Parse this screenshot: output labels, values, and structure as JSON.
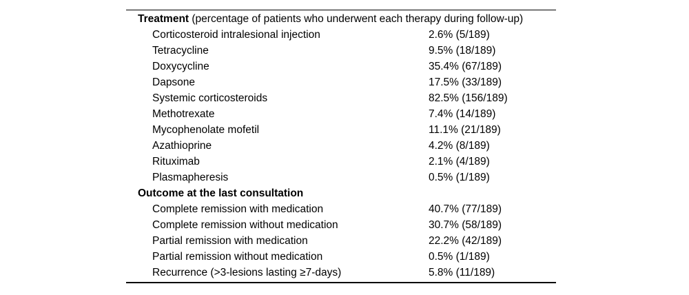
{
  "figure": {
    "background_color": "#ffffff",
    "text_color": "#000000",
    "rule_color": "#000000",
    "denominator_note": "189"
  },
  "table": {
    "sections": [
      {
        "header_bold": "Treatment",
        "header_rest": " (percentage of patients who underwent each therapy during follow-up)",
        "rows": [
          {
            "label": "Corticosteroid intralesional injection",
            "value": "2.6% (5/189)"
          },
          {
            "label": "Tetracycline",
            "value": "9.5% (18/189)"
          },
          {
            "label": "Doxycycline",
            "value": "35.4% (67/189)"
          },
          {
            "label": "Dapsone",
            "value": "17.5% (33/189)"
          },
          {
            "label": "Systemic corticosteroids",
            "value": "82.5% (156/189)"
          },
          {
            "label": "Methotrexate",
            "value": "7.4% (14/189)"
          },
          {
            "label": "Mycophenolate mofetil",
            "value": "11.1% (21/189)"
          },
          {
            "label": "Azathioprine",
            "value": "4.2% (8/189)"
          },
          {
            "label": "Rituximab",
            "value": "2.1% (4/189)"
          },
          {
            "label": "Plasmapheresis",
            "value": "0.5% (1/189)"
          }
        ]
      },
      {
        "header_bold": "Outcome at the last consultation",
        "header_rest": "",
        "rows": [
          {
            "label": "Complete remission with medication",
            "value": "40.7% (77/189)"
          },
          {
            "label": "Complete remission without medication",
            "value": "30.7% (58/189)"
          },
          {
            "label": "Partial remission with medication",
            "value": "22.2% (42/189)"
          },
          {
            "label": "Partial remission without medication",
            "value": "0.5% (1/189)"
          },
          {
            "label": "Recurrence (>3-lesions lasting ≥7-days)",
            "value": "5.8% (11/189)"
          }
        ]
      }
    ]
  }
}
